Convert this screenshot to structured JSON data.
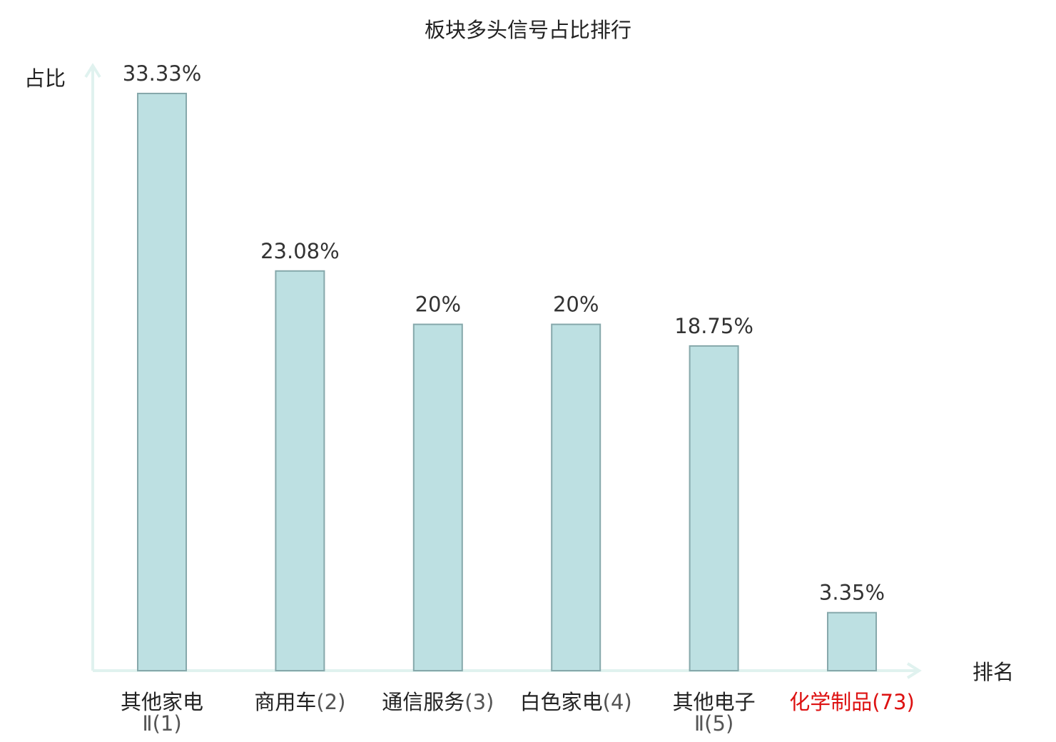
{
  "chart_data": {
    "type": "bar",
    "title": "板块多头信号占比排行",
    "ylabel": "占比",
    "xlabel": "排名",
    "ylim": [
      0,
      35
    ],
    "grid": false,
    "legend": "none",
    "categories": [
      {
        "name": "其他家电",
        "rank": "Ⅱ(1)",
        "value": 33.33,
        "value_label": "33.33%",
        "highlight": false
      },
      {
        "name": "商用车",
        "rank": "(2)",
        "value": 23.08,
        "value_label": "23.08%",
        "highlight": false
      },
      {
        "name": "通信服务",
        "rank": "(3)",
        "value": 20,
        "value_label": "20%",
        "highlight": false
      },
      {
        "name": "白色家电",
        "rank": "(4)",
        "value": 20,
        "value_label": "20%",
        "highlight": false
      },
      {
        "name": "其他电子",
        "rank": "Ⅱ(5)",
        "value": 18.75,
        "value_label": "18.75%",
        "highlight": false
      },
      {
        "name": "化学制品",
        "rank": "(73)",
        "value": 3.35,
        "value_label": "3.35%",
        "highlight": true
      }
    ]
  },
  "colors": {
    "bar_fill": "#bde0e2",
    "bar_stroke": "#86a8ab",
    "axis": "#e0f2ef",
    "highlight_text": "#dd1111",
    "normal_text": "#222222",
    "sub_text": "#555555"
  }
}
